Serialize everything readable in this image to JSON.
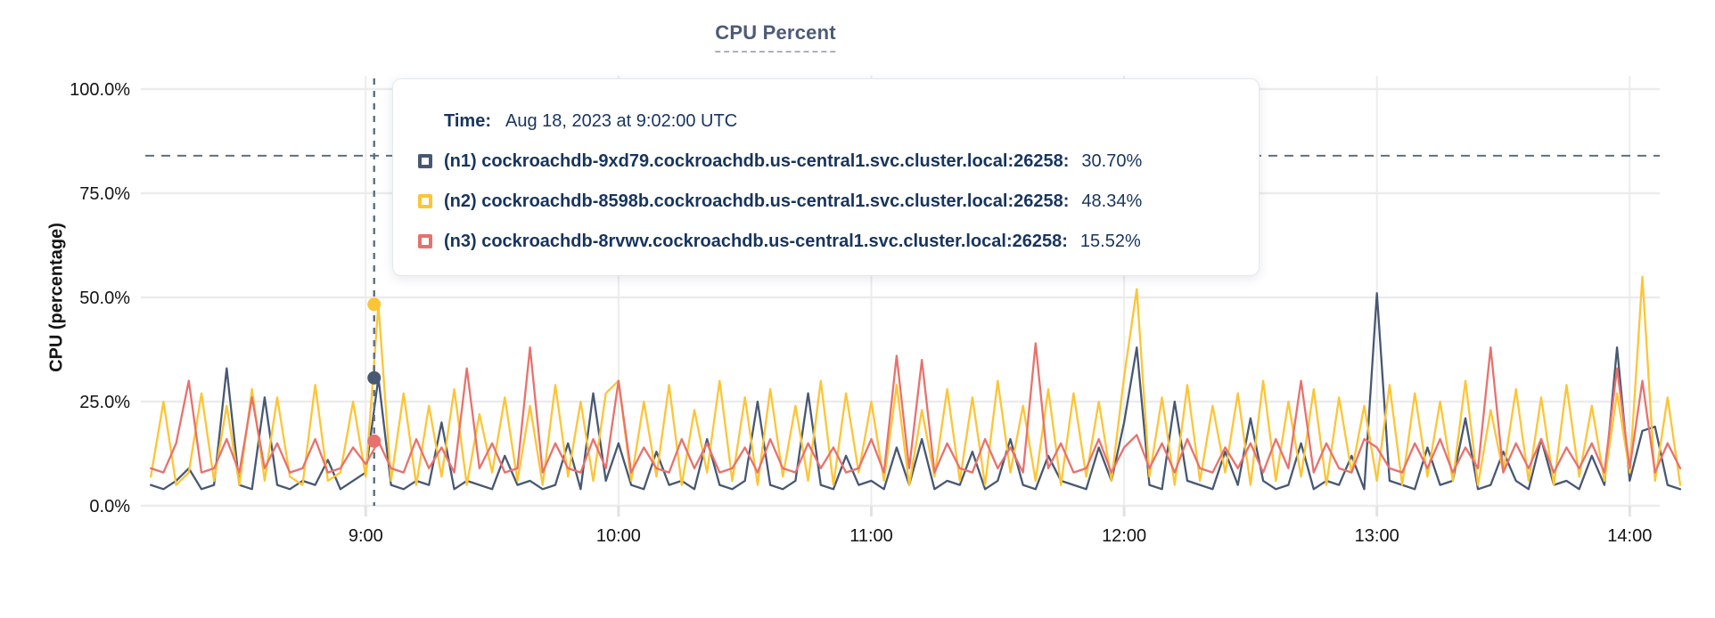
{
  "title": "CPU Percent",
  "y_axis": {
    "label": "CPU (percentage)"
  },
  "tooltip": {
    "time_label": "Time:",
    "time_value": "Aug 18, 2023 at 9:02:00 UTC",
    "series": [
      {
        "label": "(n1) cockroachdb-9xd79.cockroachdb.us-central1.svc.cluster.local:26258:",
        "value": "30.70%"
      },
      {
        "label": "(n2) cockroachdb-8598b.cockroachdb.us-central1.svc.cluster.local:26258:",
        "value": "48.34%"
      },
      {
        "label": "(n3) cockroachdb-8rvwv.cockroachdb.us-central1.svc.cluster.local:26258:",
        "value": "15.52%"
      }
    ]
  },
  "colors": {
    "n1": "#475872",
    "n2": "#fdc535",
    "n3": "#e8716d",
    "dashed_reference": "#5c7080",
    "gridline": "#ececec",
    "axis_text": "#141414",
    "title_text": "#4d5b76",
    "tooltip_text": "#17355e"
  },
  "chart_data": {
    "type": "line",
    "title": "CPU Percent",
    "xlabel": "",
    "ylabel": "CPU (percentage)",
    "ylim": [
      0,
      100
    ],
    "grid": true,
    "legend_position": "tooltip-overlay",
    "x_unit": "hour_of_day_utc",
    "x_start": 8.15,
    "x_step": 0.05,
    "x_ticks": [
      9,
      10,
      11,
      12,
      13,
      14
    ],
    "x_tick_labels": [
      "9:00",
      "10:00",
      "11:00",
      "12:00",
      "13:00",
      "14:00"
    ],
    "y_ticks": [
      0,
      25,
      50,
      75,
      100
    ],
    "y_tick_labels": [
      "0.0%",
      "25.0%",
      "50.0%",
      "75.0%",
      "100.0%"
    ],
    "dashed_reference_line_percent": 84,
    "hover": {
      "x_hour": 9.0333,
      "time": "Aug 18, 2023 at 9:02:00 UTC",
      "values": [
        30.7,
        48.34,
        15.52
      ]
    },
    "series": [
      {
        "name": "(n1) cockroachdb-9xd79.cockroachdb.us-central1.svc.cluster.local:26258",
        "color": "#475872",
        "values": [
          5,
          4,
          6,
          9,
          4,
          5,
          33,
          5,
          4,
          26,
          5,
          4,
          6,
          5,
          11,
          4,
          6,
          8,
          30.7,
          5,
          4,
          6,
          5,
          20,
          4,
          6,
          5,
          4,
          12,
          5,
          6,
          4,
          5,
          15,
          4,
          27,
          6,
          15,
          5,
          4,
          13,
          5,
          6,
          4,
          16,
          5,
          4,
          6,
          25,
          5,
          4,
          6,
          27,
          5,
          4,
          12,
          5,
          6,
          4,
          14,
          5,
          16,
          4,
          6,
          5,
          13,
          4,
          6,
          16,
          5,
          4,
          12,
          6,
          5,
          4,
          14,
          6,
          20,
          38,
          5,
          4,
          25,
          6,
          5,
          4,
          13,
          5,
          21,
          6,
          4,
          5,
          15,
          4,
          6,
          5,
          12,
          4,
          51,
          6,
          5,
          4,
          14,
          5,
          6,
          21,
          4,
          5,
          13,
          6,
          4,
          16,
          5,
          6,
          4,
          12,
          5,
          38,
          6,
          18,
          19,
          5,
          4
        ]
      },
      {
        "name": "(n2) cockroachdb-8598b.cockroachdb.us-central1.svc.cluster.local:26258",
        "color": "#fdc535",
        "values": [
          7,
          25,
          5,
          8,
          27,
          6,
          24,
          5,
          28,
          6,
          26,
          7,
          5,
          29,
          6,
          8,
          25,
          7,
          48.3,
          6,
          27,
          5,
          24,
          7,
          28,
          5,
          22,
          8,
          26,
          6,
          24,
          5,
          29,
          7,
          25,
          6,
          27,
          30,
          6,
          25,
          7,
          29,
          5,
          23,
          8,
          30,
          6,
          26,
          5,
          28,
          7,
          24,
          6,
          30,
          5,
          27,
          8,
          25,
          6,
          29,
          5,
          23,
          7,
          28,
          6,
          26,
          5,
          30,
          8,
          24,
          6,
          28,
          5,
          27,
          7,
          25,
          6,
          31,
          52,
          7,
          26,
          5,
          29,
          6,
          24,
          8,
          27,
          5,
          30,
          6,
          25,
          7,
          28,
          5,
          26,
          8,
          24,
          6,
          29,
          5,
          27,
          7,
          25,
          6,
          30,
          5,
          23,
          8,
          28,
          6,
          26,
          5,
          29,
          7,
          24,
          6,
          27,
          8,
          55,
          6,
          26,
          5
        ]
      },
      {
        "name": "(n3) cockroachdb-8rvwv.cockroachdb.us-central1.svc.cluster.local:26258",
        "color": "#e8716d",
        "values": [
          9,
          8,
          15,
          30,
          8,
          9,
          16,
          8,
          26,
          9,
          15,
          8,
          9,
          16,
          8,
          9,
          14,
          10,
          15.5,
          9,
          8,
          16,
          9,
          14,
          8,
          33,
          9,
          15,
          8,
          9,
          38,
          8,
          15,
          9,
          8,
          16,
          9,
          30,
          8,
          14,
          9,
          8,
          16,
          9,
          15,
          8,
          9,
          14,
          8,
          16,
          9,
          8,
          15,
          9,
          14,
          8,
          9,
          16,
          8,
          36,
          9,
          35,
          8,
          15,
          9,
          8,
          16,
          9,
          14,
          8,
          39,
          9,
          15,
          8,
          9,
          16,
          8,
          14,
          17,
          9,
          15,
          8,
          16,
          9,
          8,
          14,
          9,
          15,
          8,
          16,
          9,
          30,
          8,
          15,
          9,
          8,
          16,
          14,
          9,
          8,
          15,
          9,
          16,
          8,
          14,
          9,
          38,
          8,
          15,
          9,
          16,
          8,
          14,
          9,
          15,
          8,
          33,
          9,
          30,
          8,
          15,
          9
        ]
      }
    ]
  }
}
